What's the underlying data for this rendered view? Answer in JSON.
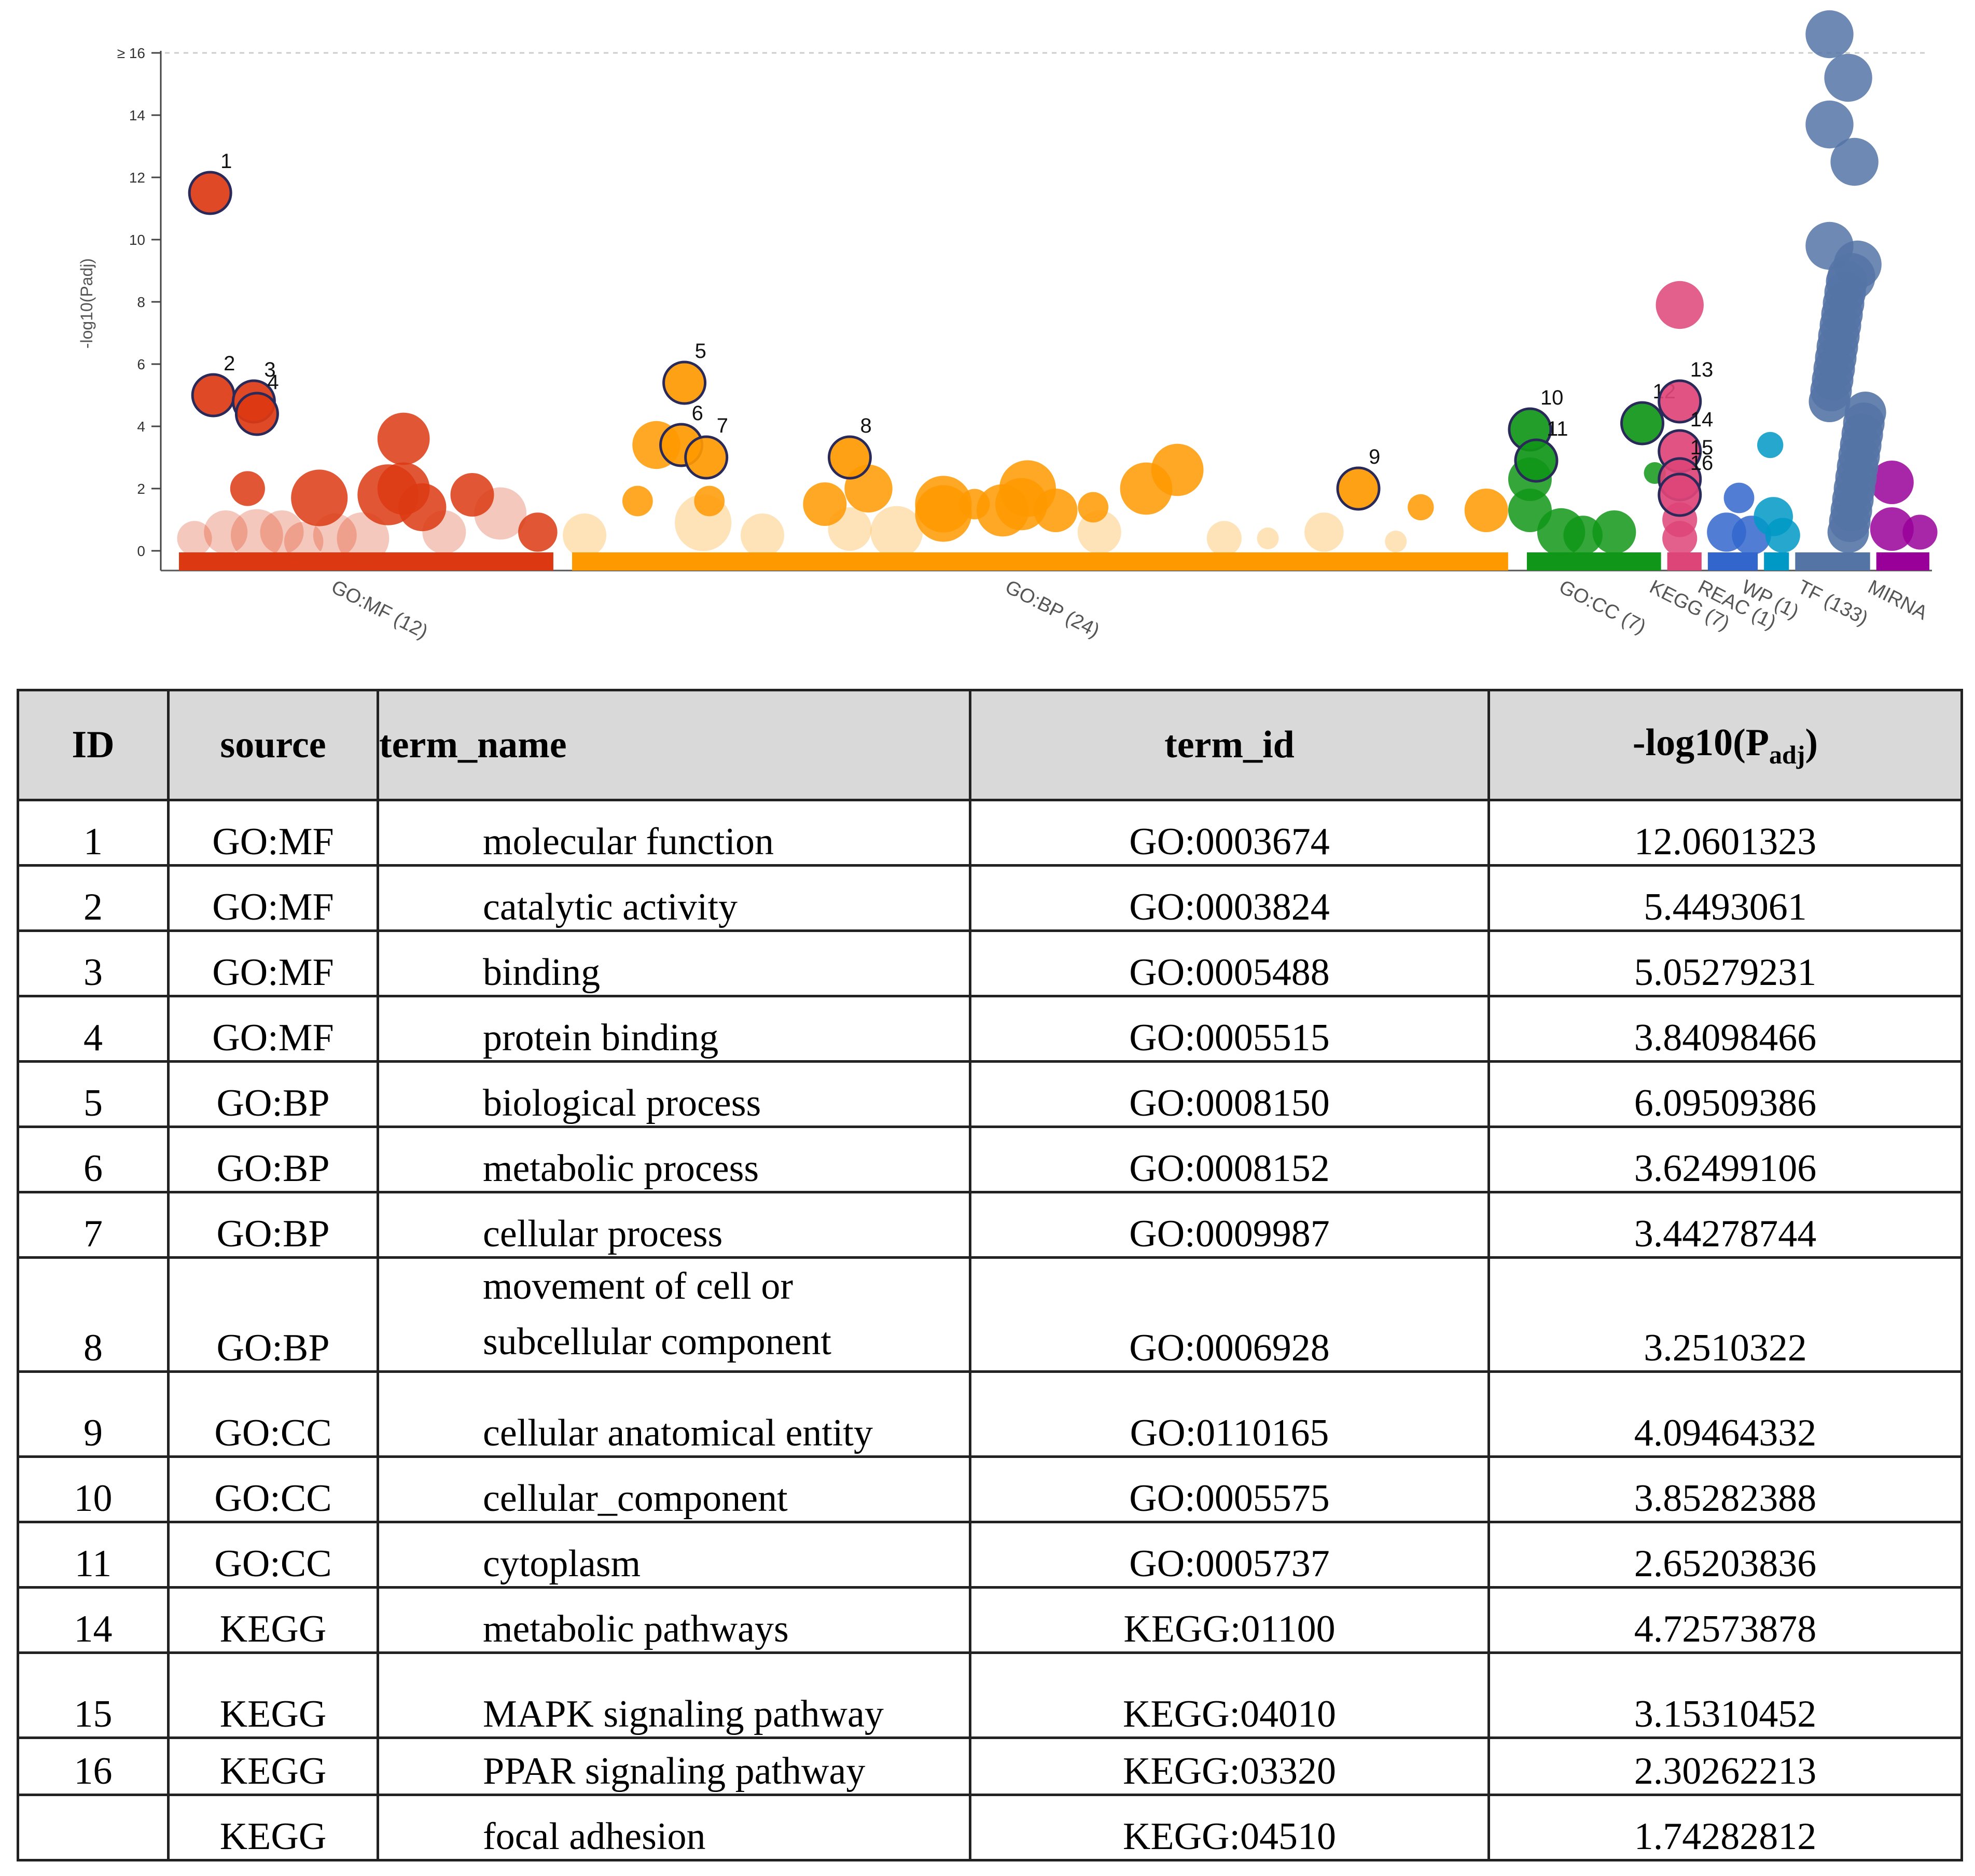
{
  "chart_data": {
    "type": "scatter",
    "title": "",
    "ylabel": "-log10(Padj)",
    "ylim": [
      0,
      16
    ],
    "y_ticks": [
      "0",
      "2",
      "4",
      "6",
      "8",
      "10",
      "12",
      "14",
      "≥ 16"
    ],
    "categories": [
      {
        "label": "GO:MF (12)",
        "color": "#dc3912",
        "x_range": [
          0,
          12
        ]
      },
      {
        "label": "GO:BP (24)",
        "color": "#ff9900",
        "x_range": [
          12.6,
          42.6
        ]
      },
      {
        "label": "GO:CC (7)",
        "color": "#109618",
        "x_range": [
          43.2,
          47.5
        ]
      },
      {
        "label": "KEGG (7)",
        "color": "#dd4477",
        "x_range": [
          47.7,
          48.8
        ]
      },
      {
        "label": "REAC (1)",
        "color": "#3366cc",
        "x_range": [
          49.0,
          50.6
        ]
      },
      {
        "label": "WP (1)",
        "color": "#0099c6",
        "x_range": [
          50.8,
          51.6
        ]
      },
      {
        "label": "TF (133)",
        "color": "#5574a6",
        "x_range": [
          51.8,
          54.2
        ]
      },
      {
        "label": "MIRNA",
        "color": "#990099",
        "x_range": [
          54.4,
          56.1
        ]
      }
    ],
    "highlighted": [
      {
        "id": "1",
        "cat": "GO:MF",
        "x": 1.0,
        "y": 11.5
      },
      {
        "id": "2",
        "cat": "GO:MF",
        "x": 1.1,
        "y": 5.0
      },
      {
        "id": "3",
        "cat": "GO:MF",
        "x": 2.4,
        "y": 4.8
      },
      {
        "id": "4",
        "cat": "GO:MF",
        "x": 2.5,
        "y": 4.4
      },
      {
        "id": "5",
        "cat": "GO:BP",
        "x": 16.2,
        "y": 5.4
      },
      {
        "id": "6",
        "cat": "GO:BP",
        "x": 16.1,
        "y": 3.4
      },
      {
        "id": "7",
        "cat": "GO:BP",
        "x": 16.9,
        "y": 3.0
      },
      {
        "id": "8",
        "cat": "GO:BP",
        "x": 21.5,
        "y": 3.0
      },
      {
        "id": "9",
        "cat": "GO:BP",
        "x": 37.8,
        "y": 2.0
      },
      {
        "id": "10",
        "cat": "GO:CC",
        "x": 43.3,
        "y": 3.9
      },
      {
        "id": "11",
        "cat": "GO:CC",
        "x": 43.5,
        "y": 2.9
      },
      {
        "id": "12",
        "cat": "GO:CC",
        "x": 46.9,
        "y": 4.1
      },
      {
        "id": "13",
        "cat": "KEGG",
        "x": 48.1,
        "y": 4.8
      },
      {
        "id": "14",
        "cat": "KEGG",
        "x": 48.1,
        "y": 3.2
      },
      {
        "id": "15",
        "cat": "KEGG",
        "x": 48.1,
        "y": 2.3
      },
      {
        "id": "16",
        "cat": "KEGG",
        "x": 48.1,
        "y": 1.8
      }
    ],
    "points": [
      {
        "cat": "GO:MF",
        "x": 2.2,
        "y": 2.0,
        "s": 0.8
      },
      {
        "cat": "GO:MF",
        "x": 4.5,
        "y": 1.7,
        "s": 1.3
      },
      {
        "cat": "GO:MF",
        "x": 7.2,
        "y": 3.6,
        "s": 1.2
      },
      {
        "cat": "GO:MF",
        "x": 6.7,
        "y": 1.8,
        "s": 1.4
      },
      {
        "cat": "GO:MF",
        "x": 7.2,
        "y": 2.0,
        "s": 1.2
      },
      {
        "cat": "GO:MF",
        "x": 7.8,
        "y": 1.4,
        "s": 1.1
      },
      {
        "cat": "GO:MF",
        "x": 9.4,
        "y": 1.8,
        "s": 1.0
      },
      {
        "cat": "GO:MF",
        "x": 0.5,
        "y": 0.4,
        "s": 0.8,
        "f": 1
      },
      {
        "cat": "GO:MF",
        "x": 1.5,
        "y": 0.6,
        "s": 1.0,
        "f": 1
      },
      {
        "cat": "GO:MF",
        "x": 2.5,
        "y": 0.5,
        "s": 1.2,
        "f": 1
      },
      {
        "cat": "GO:MF",
        "x": 3.3,
        "y": 0.6,
        "s": 1.0,
        "f": 1
      },
      {
        "cat": "GO:MF",
        "x": 4.0,
        "y": 0.3,
        "s": 0.9,
        "f": 1
      },
      {
        "cat": "GO:MF",
        "x": 5.0,
        "y": 0.5,
        "s": 1.0,
        "f": 1
      },
      {
        "cat": "GO:MF",
        "x": 5.9,
        "y": 0.4,
        "s": 1.2,
        "f": 1
      },
      {
        "cat": "GO:MF",
        "x": 8.5,
        "y": 0.6,
        "s": 1.0,
        "f": 1
      },
      {
        "cat": "GO:MF",
        "x": 10.3,
        "y": 1.2,
        "s": 1.2,
        "f": 1
      },
      {
        "cat": "GO:MF",
        "x": 11.5,
        "y": 0.6,
        "s": 0.9
      },
      {
        "cat": "GO:BP",
        "x": 13.0,
        "y": 0.5,
        "s": 1.0,
        "f": 1
      },
      {
        "cat": "GO:BP",
        "x": 15.3,
        "y": 3.4,
        "s": 1.1
      },
      {
        "cat": "GO:BP",
        "x": 14.7,
        "y": 1.6,
        "s": 0.7
      },
      {
        "cat": "GO:BP",
        "x": 17.0,
        "y": 1.6,
        "s": 0.7
      },
      {
        "cat": "GO:BP",
        "x": 16.8,
        "y": 0.9,
        "s": 1.3,
        "f": 1
      },
      {
        "cat": "GO:BP",
        "x": 18.7,
        "y": 0.5,
        "s": 1.0,
        "f": 1
      },
      {
        "cat": "GO:BP",
        "x": 20.7,
        "y": 1.5,
        "s": 1.0
      },
      {
        "cat": "GO:BP",
        "x": 22.1,
        "y": 2.0,
        "s": 1.1
      },
      {
        "cat": "GO:BP",
        "x": 21.5,
        "y": 0.7,
        "s": 1.0,
        "f": 1
      },
      {
        "cat": "GO:BP",
        "x": 24.5,
        "y": 1.5,
        "s": 1.3
      },
      {
        "cat": "GO:BP",
        "x": 24.5,
        "y": 1.2,
        "s": 1.3
      },
      {
        "cat": "GO:BP",
        "x": 25.5,
        "y": 1.5,
        "s": 0.7
      },
      {
        "cat": "GO:BP",
        "x": 26.4,
        "y": 1.3,
        "s": 1.2
      },
      {
        "cat": "GO:BP",
        "x": 27.2,
        "y": 2.0,
        "s": 1.3
      },
      {
        "cat": "GO:BP",
        "x": 27.0,
        "y": 1.5,
        "s": 1.2
      },
      {
        "cat": "GO:BP",
        "x": 28.1,
        "y": 1.3,
        "s": 1.0
      },
      {
        "cat": "GO:BP",
        "x": 29.3,
        "y": 1.4,
        "s": 0.7
      },
      {
        "cat": "GO:BP",
        "x": 31.0,
        "y": 2.0,
        "s": 1.2
      },
      {
        "cat": "GO:BP",
        "x": 32.0,
        "y": 2.6,
        "s": 1.2
      },
      {
        "cat": "GO:BP",
        "x": 23.0,
        "y": 0.6,
        "s": 1.2,
        "f": 1
      },
      {
        "cat": "GO:BP",
        "x": 29.5,
        "y": 0.6,
        "s": 1.0,
        "f": 1
      },
      {
        "cat": "GO:BP",
        "x": 33.5,
        "y": 0.4,
        "s": 0.8,
        "f": 1
      },
      {
        "cat": "GO:BP",
        "x": 36.7,
        "y": 0.6,
        "s": 0.9,
        "f": 1
      },
      {
        "cat": "GO:BP",
        "x": 39.8,
        "y": 1.4,
        "s": 0.6
      },
      {
        "cat": "GO:BP",
        "x": 41.9,
        "y": 1.3,
        "s": 1.0
      },
      {
        "cat": "GO:BP",
        "x": 34.9,
        "y": 0.4,
        "s": 0.5,
        "f": 1
      },
      {
        "cat": "GO:BP",
        "x": 39.0,
        "y": 0.3,
        "s": 0.5,
        "f": 1
      },
      {
        "cat": "GO:CC",
        "x": 43.3,
        "y": 2.3,
        "s": 1.0
      },
      {
        "cat": "GO:CC",
        "x": 43.3,
        "y": 1.3,
        "s": 1.0
      },
      {
        "cat": "GO:CC",
        "x": 44.3,
        "y": 0.6,
        "s": 1.1
      },
      {
        "cat": "GO:CC",
        "x": 45.0,
        "y": 0.5,
        "s": 0.9
      },
      {
        "cat": "GO:CC",
        "x": 46.0,
        "y": 0.6,
        "s": 1.0
      },
      {
        "cat": "GO:CC",
        "x": 47.3,
        "y": 2.5,
        "s": 0.5
      },
      {
        "cat": "KEGG",
        "x": 48.1,
        "y": 7.9,
        "s": 1.1
      },
      {
        "cat": "KEGG",
        "x": 48.1,
        "y": 1.0,
        "s": 0.8
      },
      {
        "cat": "KEGG",
        "x": 48.1,
        "y": 0.4,
        "s": 0.8
      },
      {
        "cat": "REAC",
        "x": 50.0,
        "y": 1.7,
        "s": 0.7
      },
      {
        "cat": "REAC",
        "x": 49.6,
        "y": 0.6,
        "s": 0.9
      },
      {
        "cat": "REAC",
        "x": 50.4,
        "y": 0.5,
        "s": 0.9
      },
      {
        "cat": "WP",
        "x": 51.0,
        "y": 3.4,
        "s": 0.6
      },
      {
        "cat": "WP",
        "x": 51.1,
        "y": 1.1,
        "s": 0.9
      },
      {
        "cat": "WP",
        "x": 51.4,
        "y": 0.5,
        "s": 0.8
      },
      {
        "cat": "TF",
        "x": 52.9,
        "y": 16.6,
        "s": 1.1
      },
      {
        "cat": "TF",
        "x": 53.5,
        "y": 15.2,
        "s": 1.1
      },
      {
        "cat": "TF",
        "x": 52.9,
        "y": 13.7,
        "s": 1.1
      },
      {
        "cat": "TF",
        "x": 53.7,
        "y": 12.5,
        "s": 1.1
      },
      {
        "cat": "TF",
        "x": 52.9,
        "y": 9.8,
        "s": 1.1
      },
      {
        "cat": "TF",
        "x": 53.8,
        "y": 9.2,
        "s": 1.1
      },
      {
        "cat": "TF",
        "x": 53.6,
        "y": 8.8,
        "s": 1.1
      },
      {
        "cat": "MIRNA",
        "x": 54.9,
        "y": 2.2,
        "s": 1.0
      },
      {
        "cat": "MIRNA",
        "x": 54.9,
        "y": 0.7,
        "s": 1.0
      },
      {
        "cat": "MIRNA",
        "x": 55.8,
        "y": 0.6,
        "s": 0.8
      }
    ]
  },
  "table": {
    "headers": {
      "id": "ID",
      "source": "source",
      "term_name": "term_name",
      "term_id": "term_id",
      "value_main": "-log10(P",
      "value_sub": "adj",
      "value_end": ")"
    },
    "rows": [
      {
        "id": "1",
        "source": "GO:MF",
        "term_name": "molecular function",
        "term_id": "GO:0003674",
        "value": "12.0601323"
      },
      {
        "id": "2",
        "source": "GO:MF",
        "term_name": "catalytic activity",
        "term_id": "GO:0003824",
        "value": "5.4493061"
      },
      {
        "id": "3",
        "source": "GO:MF",
        "term_name": "binding",
        "term_id": "GO:0005488",
        "value": "5.05279231"
      },
      {
        "id": "4",
        "source": "GO:MF",
        "term_name": "protein binding",
        "term_id": "GO:0005515",
        "value": "3.84098466"
      },
      {
        "id": "5",
        "source": "GO:BP",
        "term_name": "biological process",
        "term_id": "GO:0008150",
        "value": "6.09509386"
      },
      {
        "id": "6",
        "source": "GO:BP",
        "term_name": "metabolic process",
        "term_id": "GO:0008152",
        "value": "3.62499106"
      },
      {
        "id": "7",
        "source": "GO:BP",
        "term_name": "cellular process",
        "term_id": "GO:0009987",
        "value": "3.44278744"
      },
      {
        "id": "8",
        "source": "GO:BP",
        "term_name": "movement of cell or subcellular component",
        "term_id": "GO:0006928",
        "value": "3.2510322"
      },
      {
        "id": "9",
        "source": "GO:CC",
        "term_name": "cellular anatomical entity",
        "term_id": "GO:0110165",
        "value": "4.09464332"
      },
      {
        "id": "10",
        "source": "GO:CC",
        "term_name": "cellular_component",
        "term_id": "GO:0005575",
        "value": "3.85282388"
      },
      {
        "id": "11",
        "source": "GO:CC",
        "term_name": "cytoplasm",
        "term_id": "GO:0005737",
        "value": "2.65203836"
      },
      {
        "id": "14",
        "source": "KEGG",
        "term_name": "metabolic pathways",
        "term_id": "KEGG:01100",
        "value": "4.72573878"
      },
      {
        "id": "15",
        "source": "KEGG",
        "term_name": "MAPK signaling pathway",
        "term_id": "KEGG:04010",
        "value": "3.15310452"
      },
      {
        "id": "16",
        "source": "KEGG",
        "term_name": "PPAR signaling pathway",
        "term_id": "KEGG:03320",
        "value": "2.30262213"
      },
      {
        "id": "",
        "source": "KEGG",
        "term_name": "focal adhesion",
        "term_id": "KEGG:04510",
        "value": "1.74282812"
      }
    ]
  }
}
